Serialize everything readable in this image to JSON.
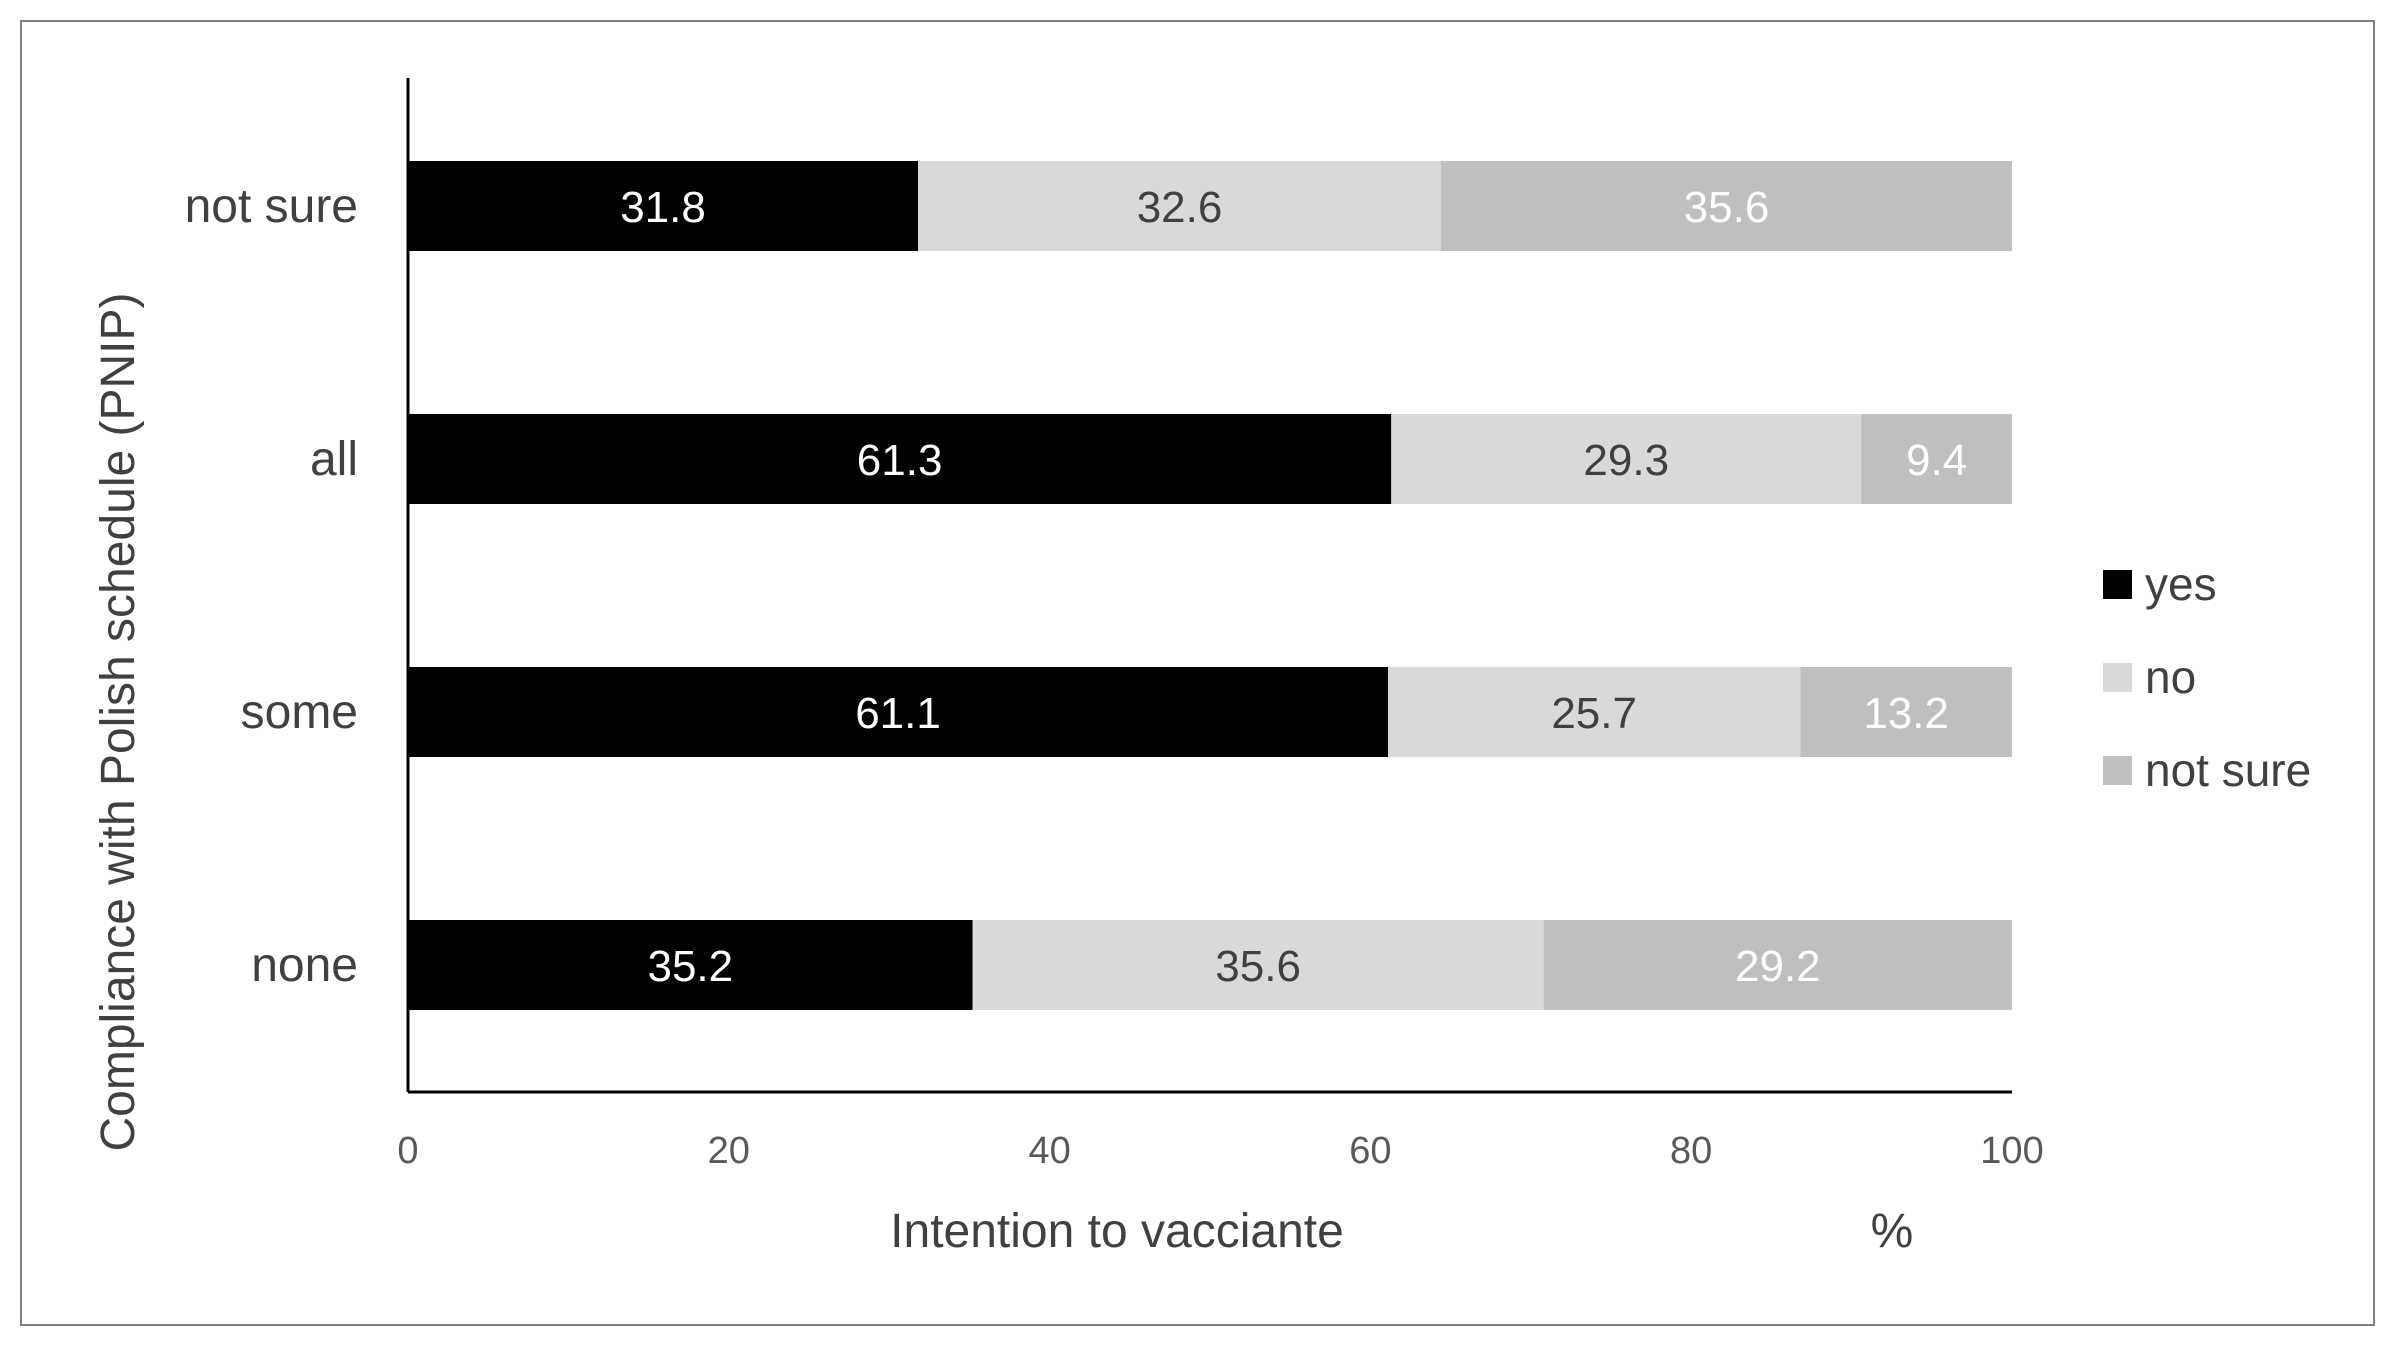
{
  "chart_data": {
    "type": "bar",
    "orientation": "horizontal",
    "stacked": true,
    "categories": [
      "not sure",
      "all",
      "some",
      "none"
    ],
    "series": [
      {
        "name": "yes",
        "values": [
          31.8,
          61.3,
          61.1,
          35.2
        ],
        "color": "#000000",
        "label_color": "#ffffff"
      },
      {
        "name": "no",
        "values": [
          32.6,
          29.3,
          25.7,
          35.6
        ],
        "color": "#d9d9d9",
        "label_color": "#404040"
      },
      {
        "name": "not sure",
        "values": [
          35.6,
          9.4,
          13.2,
          29.2
        ],
        "color": "#bfbfbf",
        "label_color": "#ffffff"
      }
    ],
    "xlabel": "Intention to vacciante",
    "x_unit": "%",
    "ylabel": "Compliance with Polish schedule (PNIP)",
    "xlim": [
      0,
      100
    ],
    "xticks": [
      "0",
      "20",
      "40",
      "60",
      "80",
      "100"
    ],
    "grid": false,
    "legend": "right"
  }
}
